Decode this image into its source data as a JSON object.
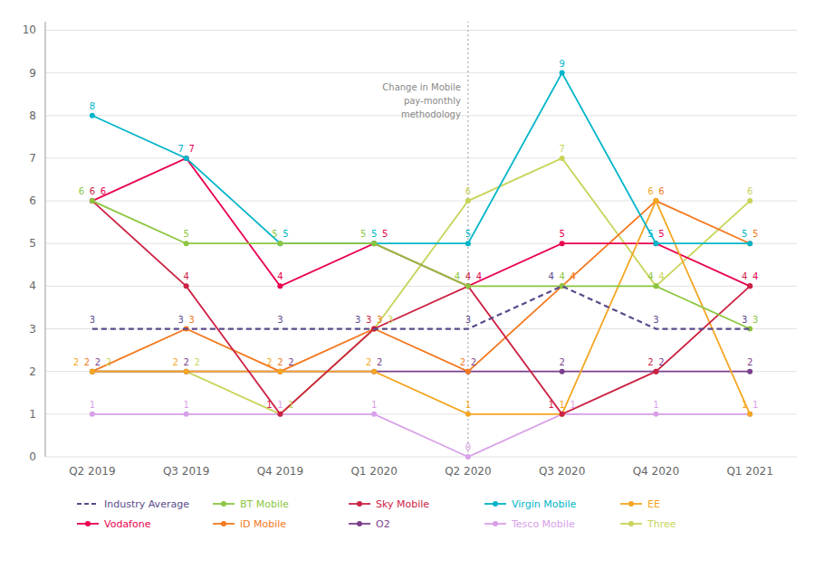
{
  "chart_data": {
    "type": "line",
    "categories": [
      "Q2 2019",
      "Q3 2019",
      "Q4 2019",
      "Q1 2020",
      "Q2 2020",
      "Q3 2020",
      "Q4 2020",
      "Q1 2021"
    ],
    "series": [
      {
        "name": "Industry Average",
        "color": "#5b4a8a",
        "line_style": "dashed",
        "values": [
          3,
          3,
          3,
          3,
          3,
          4,
          3,
          3
        ]
      },
      {
        "name": "BT Mobile",
        "color": "#8cc63f",
        "line_style": "solid",
        "marker": "circle",
        "values": [
          6,
          5,
          5,
          5,
          4,
          4,
          4,
          3
        ]
      },
      {
        "name": "Sky Mobile",
        "color": "#cc2244",
        "line_style": "solid",
        "marker": "circle",
        "values": [
          6,
          4,
          1,
          3,
          4,
          1,
          2,
          4
        ]
      },
      {
        "name": "Virgin Mobile",
        "color": "#00b5c8",
        "line_style": "solid",
        "marker": "circle",
        "values": [
          8,
          7,
          5,
          5,
          5,
          9,
          5,
          5
        ]
      },
      {
        "name": "EE",
        "color": "#f5a623",
        "line_style": "solid",
        "marker": "circle",
        "values": [
          2,
          2,
          2,
          2,
          1,
          1,
          6,
          1
        ]
      },
      {
        "name": "Vodafone",
        "color": "#e8004d",
        "line_style": "solid",
        "marker": "circle",
        "values": [
          6,
          7,
          4,
          5,
          4,
          5,
          5,
          4
        ]
      },
      {
        "name": "iD Mobile",
        "color": "#f47920",
        "line_style": "solid",
        "marker": "circle",
        "values": [
          2,
          3,
          2,
          3,
          2,
          4,
          6,
          5
        ]
      },
      {
        "name": "O2",
        "color": "#7b3f8c",
        "line_style": "solid",
        "marker": "circle",
        "values": [
          2,
          2,
          2,
          2,
          2,
          2,
          2,
          2
        ]
      },
      {
        "name": "Tesco Mobile",
        "color": "#d8a0e8",
        "line_style": "solid",
        "marker": "circle",
        "values": [
          1,
          1,
          1,
          1,
          0,
          1,
          1,
          1
        ]
      },
      {
        "name": "Three",
        "color": "#c8d45a",
        "line_style": "solid",
        "marker": "circle",
        "values": [
          2,
          2,
          1,
          3,
          6,
          7,
          4,
          6
        ]
      }
    ],
    "annotations": [
      {
        "text": "Change in Mobile\npay-monthly\nmethodology",
        "x": "Q2 2020",
        "y": 8.8
      }
    ],
    "ylim": [
      0,
      10.2
    ],
    "yticks": [
      0,
      1,
      2,
      3,
      4,
      5,
      6,
      7,
      8,
      9,
      10
    ],
    "grid": true,
    "legend": "bottom",
    "data_labels": true
  }
}
